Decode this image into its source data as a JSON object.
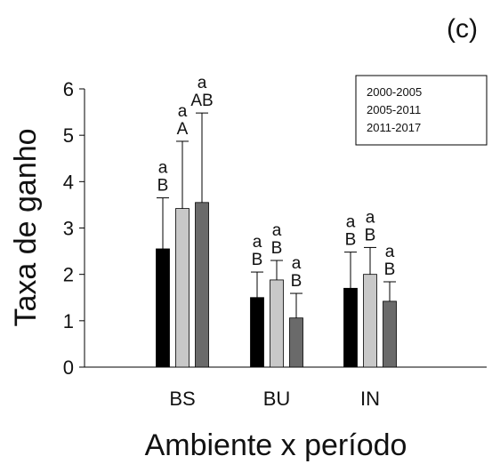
{
  "panel_label": "(c)",
  "chart_data": {
    "type": "bar",
    "title": "",
    "xlabel": "Ambiente x período",
    "ylabel": "Taxa de ganho",
    "ylim": [
      0,
      6
    ],
    "yticks": [
      0,
      1,
      2,
      3,
      4,
      5,
      6
    ],
    "grid": false,
    "legend_position": "top-right",
    "categories": [
      "BS",
      "BU",
      "IN"
    ],
    "series": [
      {
        "name": "2000-2005",
        "color": "#000000",
        "values": [
          2.55,
          1.5,
          1.7
        ],
        "errors": [
          1.1,
          0.55,
          0.78
        ],
        "letters_lower": [
          "a",
          "a",
          "a"
        ],
        "letters_upper": [
          "B",
          "B",
          "B"
        ]
      },
      {
        "name": "2005-2011",
        "color": "#c8c8c8",
        "values": [
          3.42,
          1.88,
          2.0
        ],
        "errors": [
          1.45,
          0.42,
          0.58
        ],
        "letters_lower": [
          "a",
          "a",
          "a"
        ],
        "letters_upper": [
          "A",
          "B",
          "B"
        ]
      },
      {
        "name": "2011-2017",
        "color": "#6a6a6a",
        "values": [
          3.55,
          1.06,
          1.42
        ],
        "errors": [
          1.93,
          0.53,
          0.42
        ],
        "letters_lower": [
          "a",
          "a",
          "a"
        ],
        "letters_upper": [
          "AB",
          "B",
          "B"
        ]
      }
    ]
  }
}
